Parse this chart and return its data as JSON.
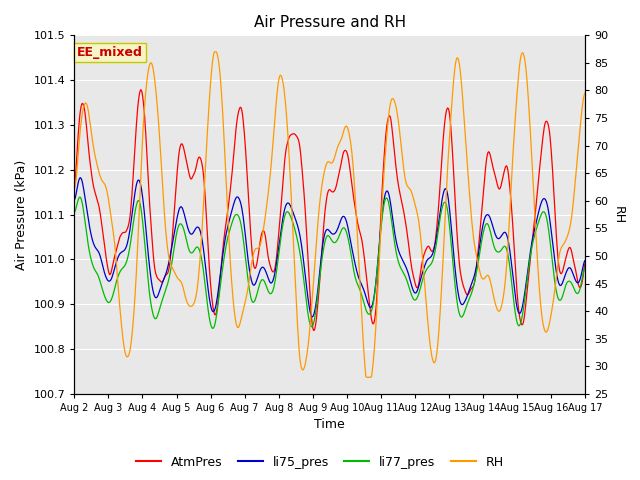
{
  "title": "Air Pressure and RH",
  "xlabel": "Time",
  "ylabel_left": "Air Pressure (kPa)",
  "ylabel_right": "RH",
  "ylim_left": [
    100.7,
    101.5
  ],
  "ylim_right": [
    25,
    90
  ],
  "yticks_left": [
    100.7,
    100.8,
    100.9,
    101.0,
    101.1,
    101.2,
    101.3,
    101.4,
    101.5
  ],
  "yticks_right": [
    25,
    30,
    35,
    40,
    45,
    50,
    55,
    60,
    65,
    70,
    75,
    80,
    85,
    90
  ],
  "xtick_labels": [
    "Aug 2",
    "Aug 3",
    "Aug 4",
    "Aug 5",
    "Aug 6",
    "Aug 7",
    "Aug 8",
    "Aug 9",
    "Aug 10",
    "Aug 11",
    "Aug 12",
    "Aug 13",
    "Aug 14",
    "Aug 15",
    "Aug 16",
    "Aug 17"
  ],
  "annotation_text": "EE_mixed",
  "annotation_bg": "#f5f5c8",
  "annotation_border": "#c8c800",
  "annotation_text_color": "#cc0000",
  "colors": {
    "AtmPres": "#ff0000",
    "li75_pres": "#0000cc",
    "li77_pres": "#00bb00",
    "RH": "#ff9900"
  },
  "legend_labels": [
    "AtmPres",
    "li75_pres",
    "li77_pres",
    "RH"
  ],
  "bg_color": "#e8e8e8",
  "fig_bg_color": "#ffffff",
  "n_points": 800,
  "seed": 7
}
